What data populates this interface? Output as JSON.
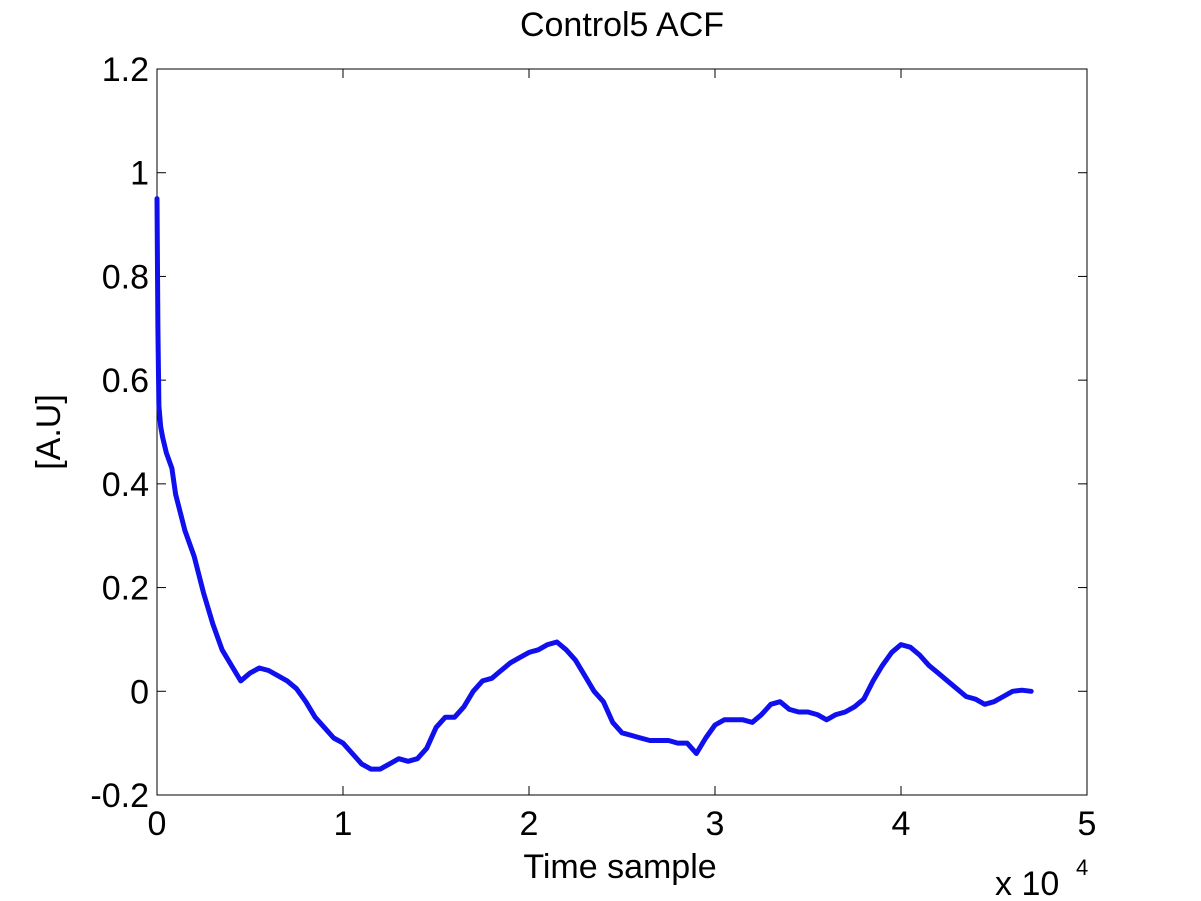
{
  "chart_data": {
    "type": "line",
    "title": "Control5 ACF",
    "xlabel": "Time sample",
    "ylabel": "[A.U]",
    "x_multiplier": {
      "base": "x 10",
      "exponent": "4"
    },
    "xlim": [
      0,
      5
    ],
    "ylim": [
      -0.2,
      1.2
    ],
    "xticks": [
      0,
      1,
      2,
      3,
      4,
      5
    ],
    "xtick_labels": [
      "0",
      "1",
      "2",
      "3",
      "4",
      "5"
    ],
    "yticks": [
      -0.2,
      0,
      0.2,
      0.4,
      0.6,
      0.8,
      1,
      1.2
    ],
    "ytick_labels": [
      "-0.2",
      "0",
      "0.2",
      "0.4",
      "0.6",
      "0.8",
      "1",
      "1.2"
    ],
    "grid": false,
    "line_color": "#1010ee",
    "series": [
      {
        "x": [
          0,
          0.005,
          0.01,
          0.02,
          0.03,
          0.05,
          0.08,
          0.1,
          0.15,
          0.2,
          0.25,
          0.3,
          0.35,
          0.4,
          0.45,
          0.5,
          0.55,
          0.6,
          0.65,
          0.7,
          0.75,
          0.8,
          0.85,
          0.9,
          0.95,
          1.0,
          1.05,
          1.1,
          1.15,
          1.2,
          1.25,
          1.3,
          1.35,
          1.4,
          1.45,
          1.5,
          1.55,
          1.6,
          1.65,
          1.7,
          1.75,
          1.8,
          1.85,
          1.9,
          1.95,
          2.0,
          2.05,
          2.1,
          2.15,
          2.2,
          2.25,
          2.3,
          2.35,
          2.4,
          2.45,
          2.5,
          2.55,
          2.6,
          2.65,
          2.7,
          2.75,
          2.8,
          2.85,
          2.9,
          2.95,
          3.0,
          3.05,
          3.1,
          3.15,
          3.2,
          3.25,
          3.3,
          3.35,
          3.4,
          3.45,
          3.5,
          3.55,
          3.6,
          3.65,
          3.7,
          3.75,
          3.8,
          3.85,
          3.9,
          3.95,
          4.0,
          4.05,
          4.1,
          4.15,
          4.2,
          4.25,
          4.3,
          4.35,
          4.4,
          4.45,
          4.5,
          4.55,
          4.6,
          4.65,
          4.7
        ],
        "y": [
          0.95,
          0.7,
          0.55,
          0.51,
          0.49,
          0.46,
          0.43,
          0.38,
          0.31,
          0.26,
          0.19,
          0.13,
          0.08,
          0.05,
          0.02,
          0.035,
          0.045,
          0.04,
          0.03,
          0.02,
          0.005,
          -0.02,
          -0.05,
          -0.07,
          -0.09,
          -0.1,
          -0.12,
          -0.14,
          -0.15,
          -0.15,
          -0.14,
          -0.13,
          -0.135,
          -0.13,
          -0.11,
          -0.07,
          -0.05,
          -0.05,
          -0.03,
          0.0,
          0.02,
          0.025,
          0.04,
          0.055,
          0.065,
          0.075,
          0.08,
          0.09,
          0.095,
          0.08,
          0.06,
          0.03,
          0.0,
          -0.02,
          -0.06,
          -0.08,
          -0.085,
          -0.09,
          -0.095,
          -0.095,
          -0.095,
          -0.1,
          -0.1,
          -0.12,
          -0.09,
          -0.065,
          -0.055,
          -0.055,
          -0.055,
          -0.06,
          -0.045,
          -0.025,
          -0.02,
          -0.035,
          -0.04,
          -0.04,
          -0.045,
          -0.055,
          -0.045,
          -0.04,
          -0.03,
          -0.015,
          0.02,
          0.05,
          0.075,
          0.09,
          0.085,
          0.07,
          0.05,
          0.035,
          0.02,
          0.005,
          -0.01,
          -0.015,
          -0.025,
          -0.02,
          -0.01,
          0.0,
          0.002,
          0.0
        ]
      }
    ]
  }
}
